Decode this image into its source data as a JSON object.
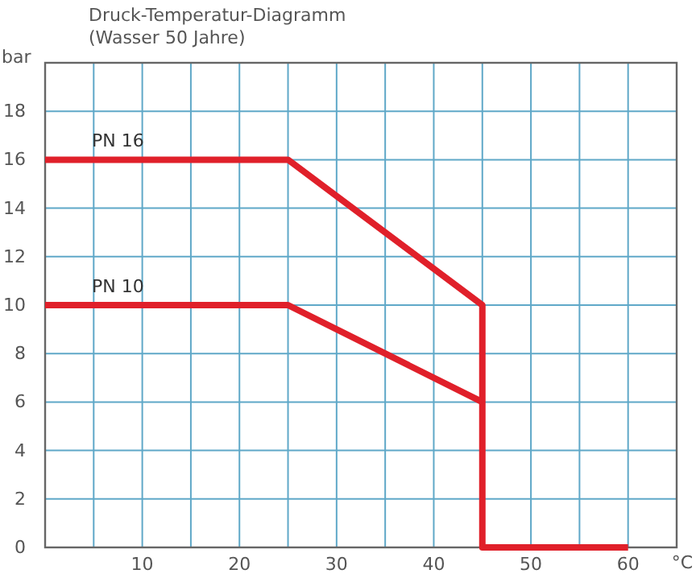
{
  "chart_data": {
    "type": "line",
    "title": "Druck-Temperatur-Diagramm",
    "subtitle": "(Wasser 50 Jahre)",
    "xlabel": "°C",
    "ylabel": "bar",
    "series": [
      {
        "name": "PN 16",
        "color": "#e0202a",
        "x": [
          0,
          25,
          45,
          45,
          60
        ],
        "values": [
          16,
          16,
          10,
          0,
          0
        ]
      },
      {
        "name": "PN 10",
        "color": "#e0202a",
        "x": [
          0,
          25,
          45
        ],
        "values": [
          10,
          10,
          6
        ]
      }
    ],
    "xlim": [
      0,
      65
    ],
    "xticks": [
      {
        "value": 5,
        "label": null
      },
      10,
      {
        "value": 15,
        "label": null
      },
      20,
      {
        "value": 25,
        "label": null
      },
      30,
      {
        "value": 35,
        "label": null
      },
      40,
      {
        "value": 45,
        "label": null
      },
      50,
      {
        "value": 55,
        "label": null
      },
      60
    ],
    "ylim": [
      0,
      20
    ],
    "yticks": [
      0,
      2,
      4,
      6,
      8,
      10,
      12,
      14,
      16,
      18
    ],
    "grid": true,
    "legend": false,
    "marker": "none",
    "line_style": "solid"
  }
}
